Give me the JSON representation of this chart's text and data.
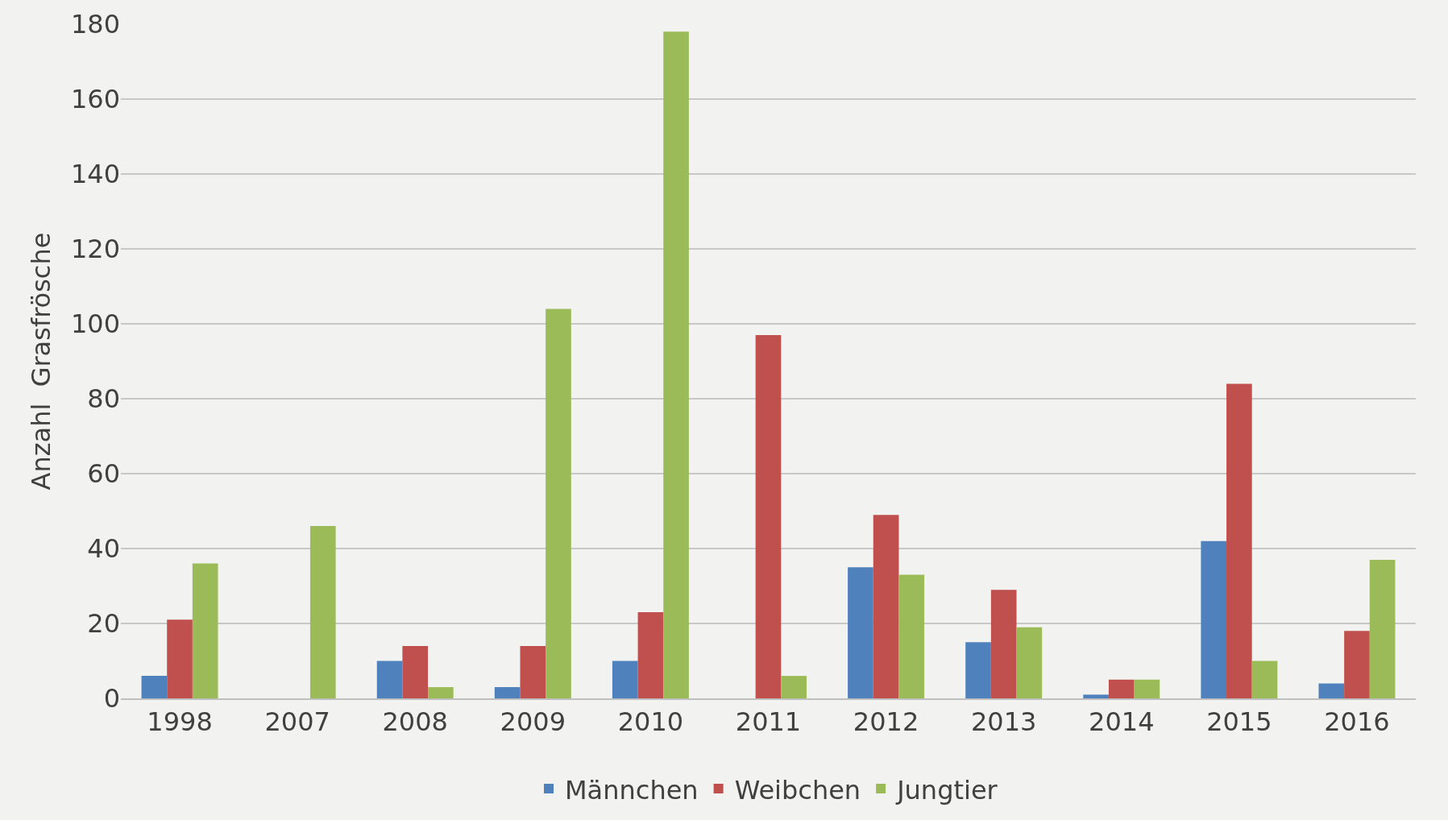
{
  "chart_data": {
    "type": "bar",
    "ylabel": "Anzahl  Grasfrösche",
    "categories": [
      "1998",
      "2007",
      "2008",
      "2009",
      "2010",
      "2011",
      "2012",
      "2013",
      "2014",
      "2015",
      "2016"
    ],
    "series": [
      {
        "name": "Männchen",
        "color": "#4f81bd",
        "values": [
          6,
          0,
          10,
          3,
          10,
          0,
          35,
          15,
          1,
          42,
          4
        ]
      },
      {
        "name": "Weibchen",
        "color": "#c0504d",
        "values": [
          21,
          0,
          14,
          14,
          23,
          97,
          49,
          29,
          5,
          84,
          18
        ]
      },
      {
        "name": "Jungtier",
        "color": "#9bbb59",
        "values": [
          36,
          46,
          3,
          104,
          178,
          6,
          33,
          19,
          5,
          10,
          37
        ]
      }
    ],
    "ylim": [
      0,
      180
    ],
    "yticks": [
      0,
      20,
      40,
      60,
      80,
      100,
      120,
      140,
      160,
      180
    ],
    "grid": "y",
    "legend": "bottom"
  }
}
